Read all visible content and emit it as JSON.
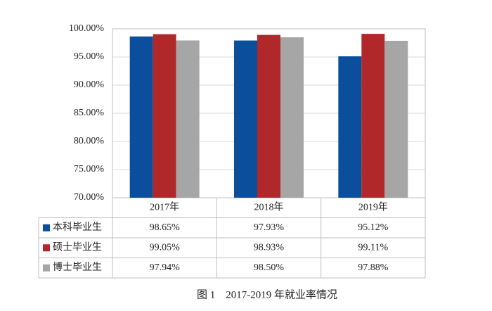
{
  "chart_data": {
    "type": "bar",
    "title": "图 1　2017-2019 年就业率情况",
    "categories": [
      "2017年",
      "2018年",
      "2019年"
    ],
    "series": [
      {
        "name": "本科毕业生",
        "color": "#0b4f9c",
        "values": [
          98.65,
          97.93,
          95.12
        ],
        "value_labels": [
          "98.65%",
          "97.93%",
          "95.12%"
        ]
      },
      {
        "name": "硕士毕业生",
        "color": "#b0282a",
        "values": [
          99.05,
          98.93,
          99.11
        ],
        "value_labels": [
          "99.05%",
          "98.93%",
          "99.11%"
        ]
      },
      {
        "name": "博士毕业生",
        "color": "#a6a6a6",
        "values": [
          97.94,
          98.5,
          97.88
        ],
        "value_labels": [
          "97.94%",
          "98.50%",
          "97.88%"
        ]
      }
    ],
    "ylim": [
      70,
      100
    ],
    "yticks": [
      {
        "value": 70,
        "label": "70.00%"
      },
      {
        "value": 75,
        "label": "75.00%"
      },
      {
        "value": 80,
        "label": "80.00%"
      },
      {
        "value": 85,
        "label": "85.00%"
      },
      {
        "value": 90,
        "label": "90.00%"
      },
      {
        "value": 95,
        "label": "95.00%"
      },
      {
        "value": 100,
        "label": "100.00%"
      }
    ],
    "grid": true
  }
}
